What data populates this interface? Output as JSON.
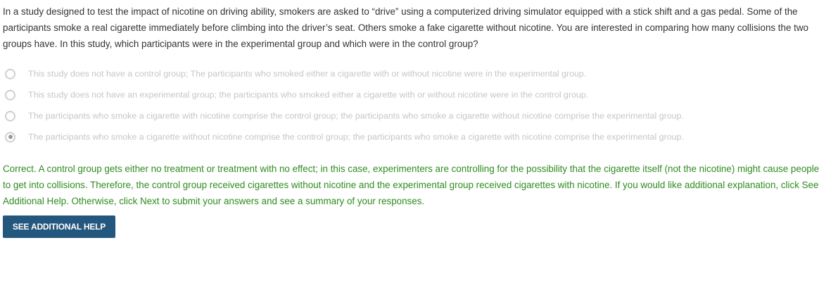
{
  "question": {
    "text": "In a study designed to test the impact of nicotine on driving ability, smokers are asked to “drive” using a computerized driving simulator equipped with a stick shift and a gas pedal. Some of the participants smoke a real cigarette immediately before climbing into the driver’s seat. Others smoke a fake cigarette without nicotine. You are interested in comparing how many collisions the two groups have. In this study, which participants were in the experimental group and which were in the control group?"
  },
  "options": [
    {
      "label": "This study does not have a control group; The participants who smoked either a cigarette with or without nicotine were in the experimental group.",
      "selected": false
    },
    {
      "label": "This study does not have an experimental group; the participants who smoked either a cigarette with or without nicotine were in the control group.",
      "selected": false
    },
    {
      "label": "The participants who smoke a cigarette with nicotine comprise the control group; the participants who smoke a cigarette without nicotine comprise the experimental group.",
      "selected": false
    },
    {
      "label": "The participants who smoke a cigarette without nicotine comprise the control group; the participants who smoke a cigarette with nicotine comprise the experimental group.",
      "selected": true
    }
  ],
  "feedback": {
    "text": "Correct. A control group gets either no treatment or treatment with no effect; in this case, experimenters are controlling for the possibility that the cigarette itself (not the nicotine) might cause people to get into collisions. Therefore, the control group received cigarettes without nicotine and the experimental group received cigarettes with nicotine. If you would like additional explanation, click See Additional Help. Otherwise, click Next to submit your answers and see a summary of your responses.",
    "color": "#2e8b1f"
  },
  "help_button": {
    "label": "SEE ADDITIONAL HELP",
    "color": "#24577d"
  }
}
